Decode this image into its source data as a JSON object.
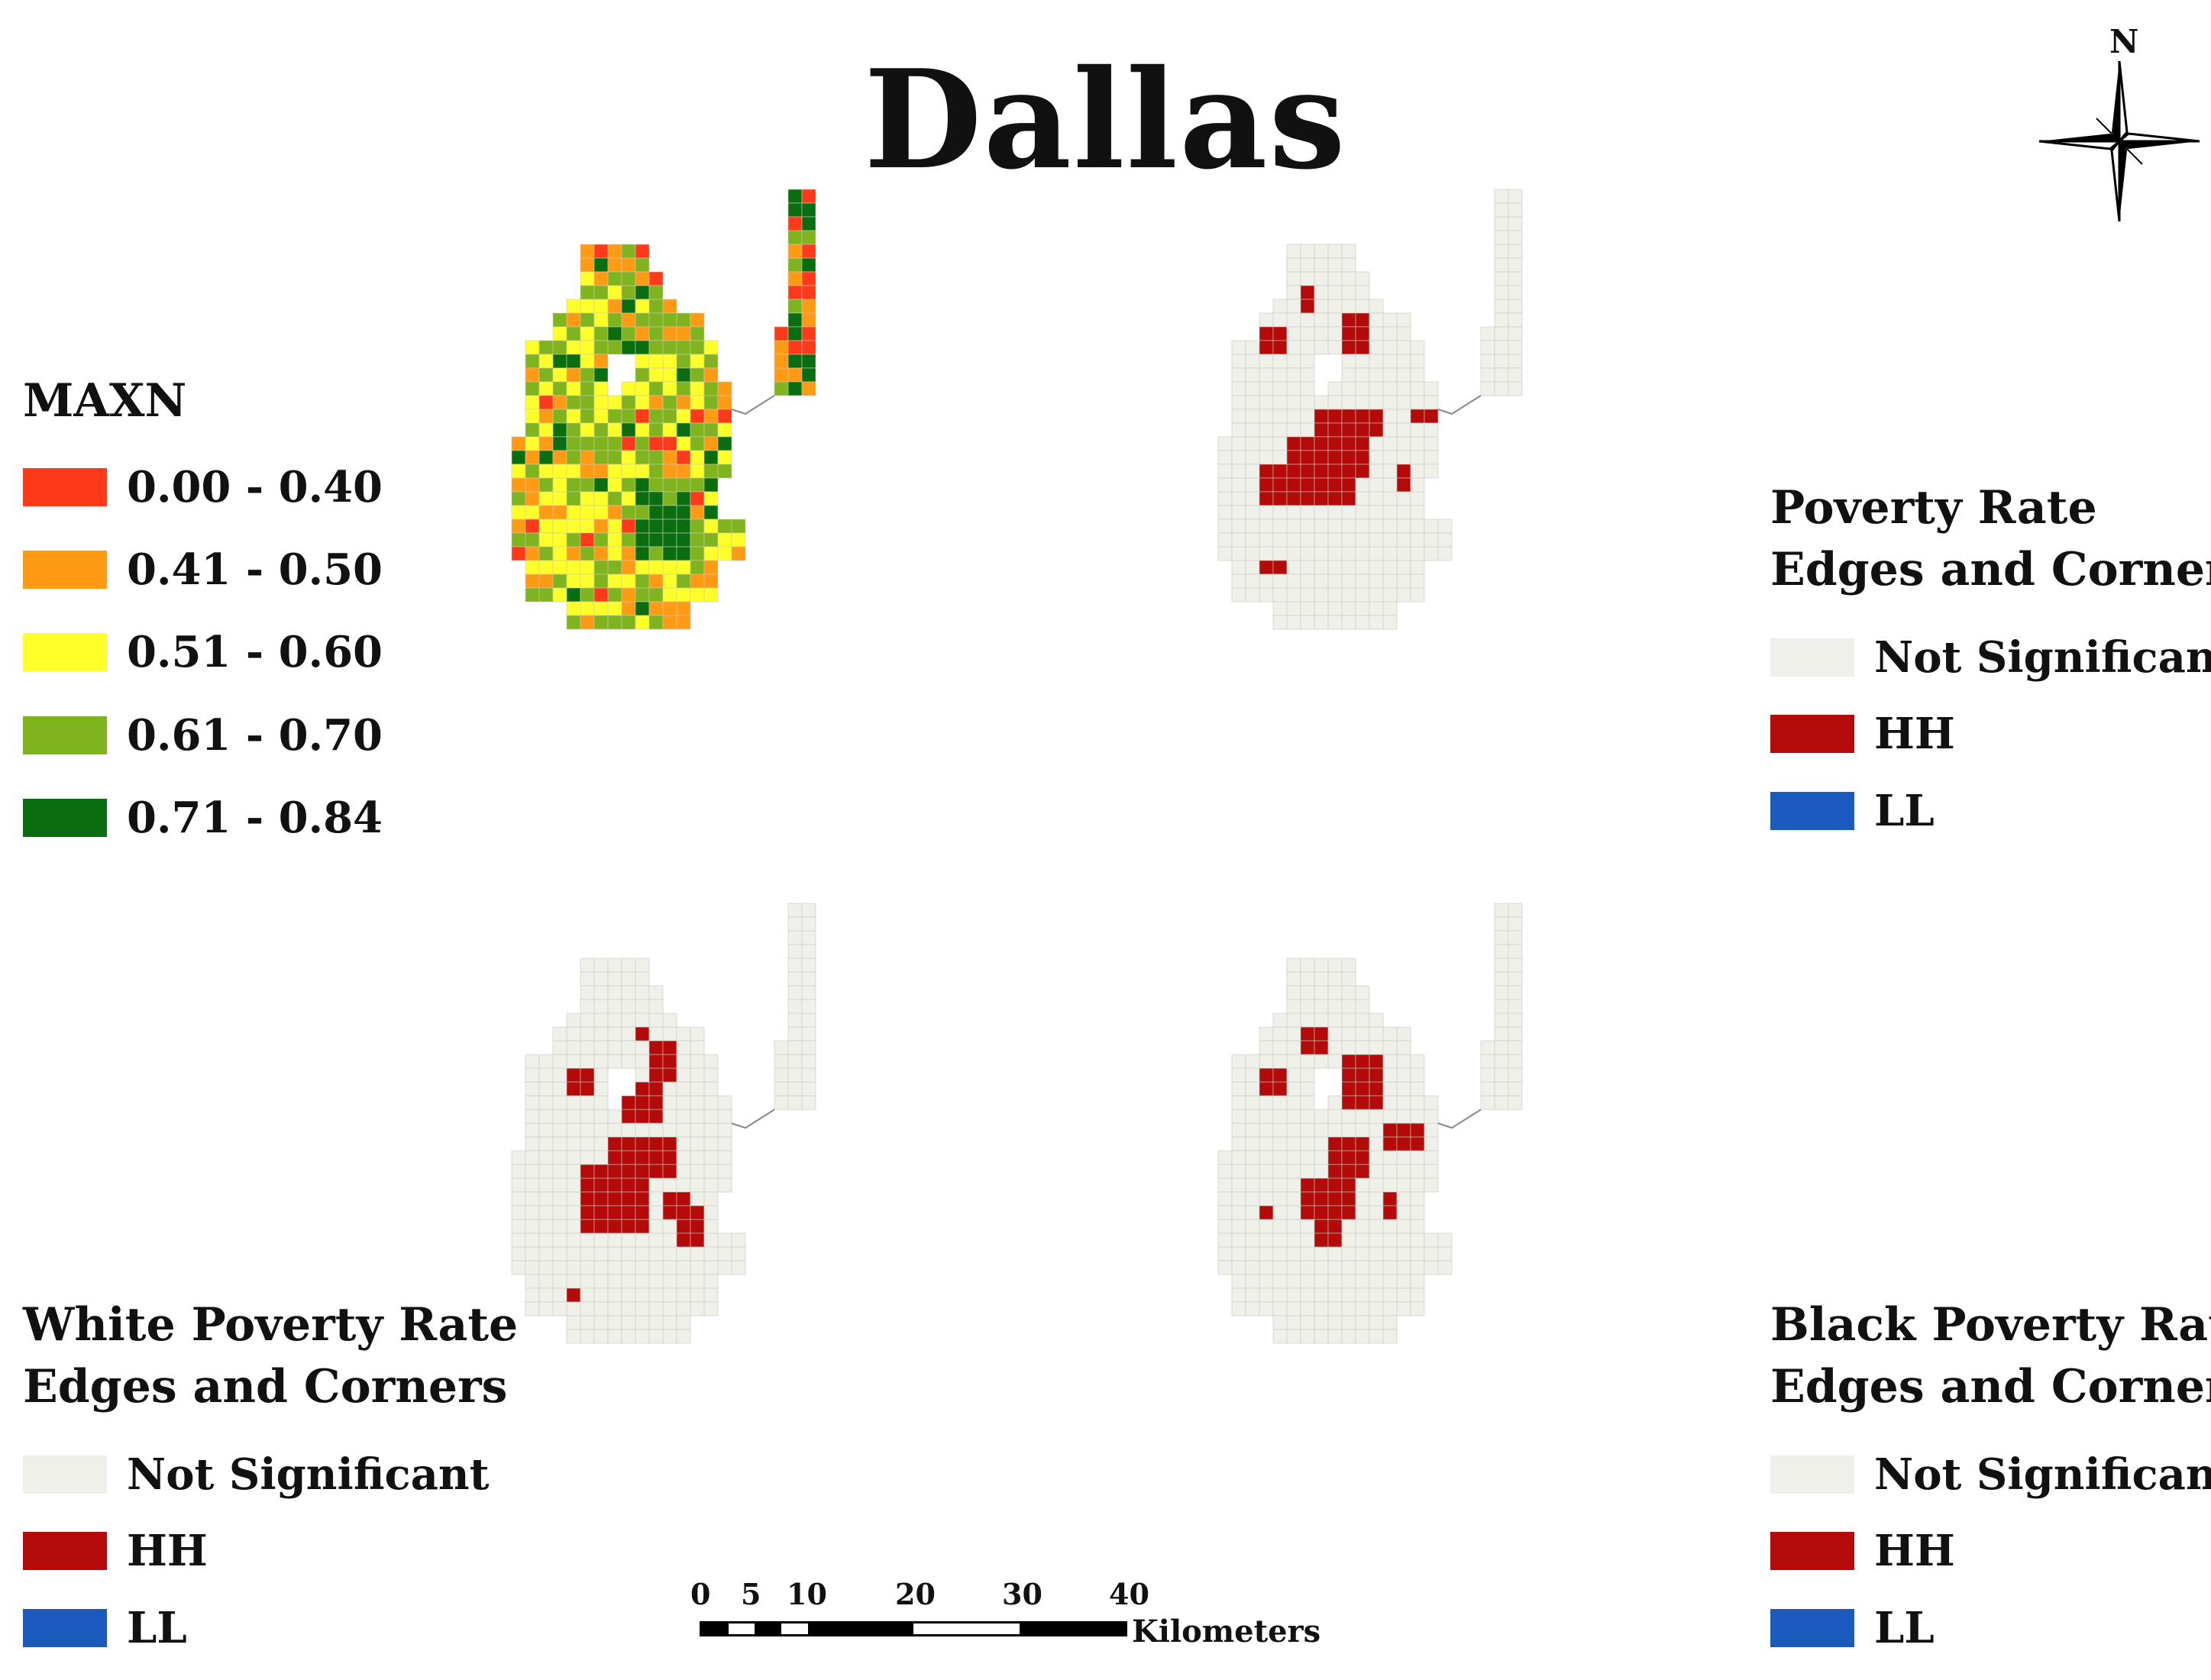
{
  "title": "Dallas",
  "north_label": "N",
  "maxn_legend": {
    "title": "MAXN",
    "classes": [
      {
        "label": "0.00 - 0.40",
        "color": "#ff3a1a"
      },
      {
        "label": "0.41 - 0.50",
        "color": "#ff9a14"
      },
      {
        "label": "0.51 - 0.60",
        "color": "#ffff2a"
      },
      {
        "label": "0.61 - 0.70",
        "color": "#80b41e"
      },
      {
        "label": "0.71 - 0.84",
        "color": "#0a6e10"
      }
    ]
  },
  "poverty_legend": {
    "title_line1": "Poverty Rate",
    "title_line2": "Edges and Corners",
    "classes": [
      {
        "label": "Not Significant",
        "color": "#f0f0ea"
      },
      {
        "label": "HH",
        "color": "#b40a0a"
      },
      {
        "label": "LL",
        "color": "#1a5abf"
      }
    ]
  },
  "white_legend": {
    "title_line1": "White Poverty Rate",
    "title_line2": "Edges and Corners",
    "classes": [
      {
        "label": "Not Significant",
        "color": "#f0f0ea"
      },
      {
        "label": "HH",
        "color": "#b40a0a"
      },
      {
        "label": "LL",
        "color": "#1a5abf"
      }
    ]
  },
  "black_legend": {
    "title_line1": "Black Poverty Rate",
    "title_line2": "Edges and Corners",
    "classes": [
      {
        "label": "Not Significant",
        "color": "#f0f0ea"
      },
      {
        "label": "HH",
        "color": "#b40a0a"
      },
      {
        "label": "LL",
        "color": "#1a5abf"
      }
    ]
  },
  "scale_bar": {
    "ticks": [
      "0",
      "5",
      "10",
      "20",
      "30",
      "40"
    ],
    "unit": "Kilometers"
  }
}
